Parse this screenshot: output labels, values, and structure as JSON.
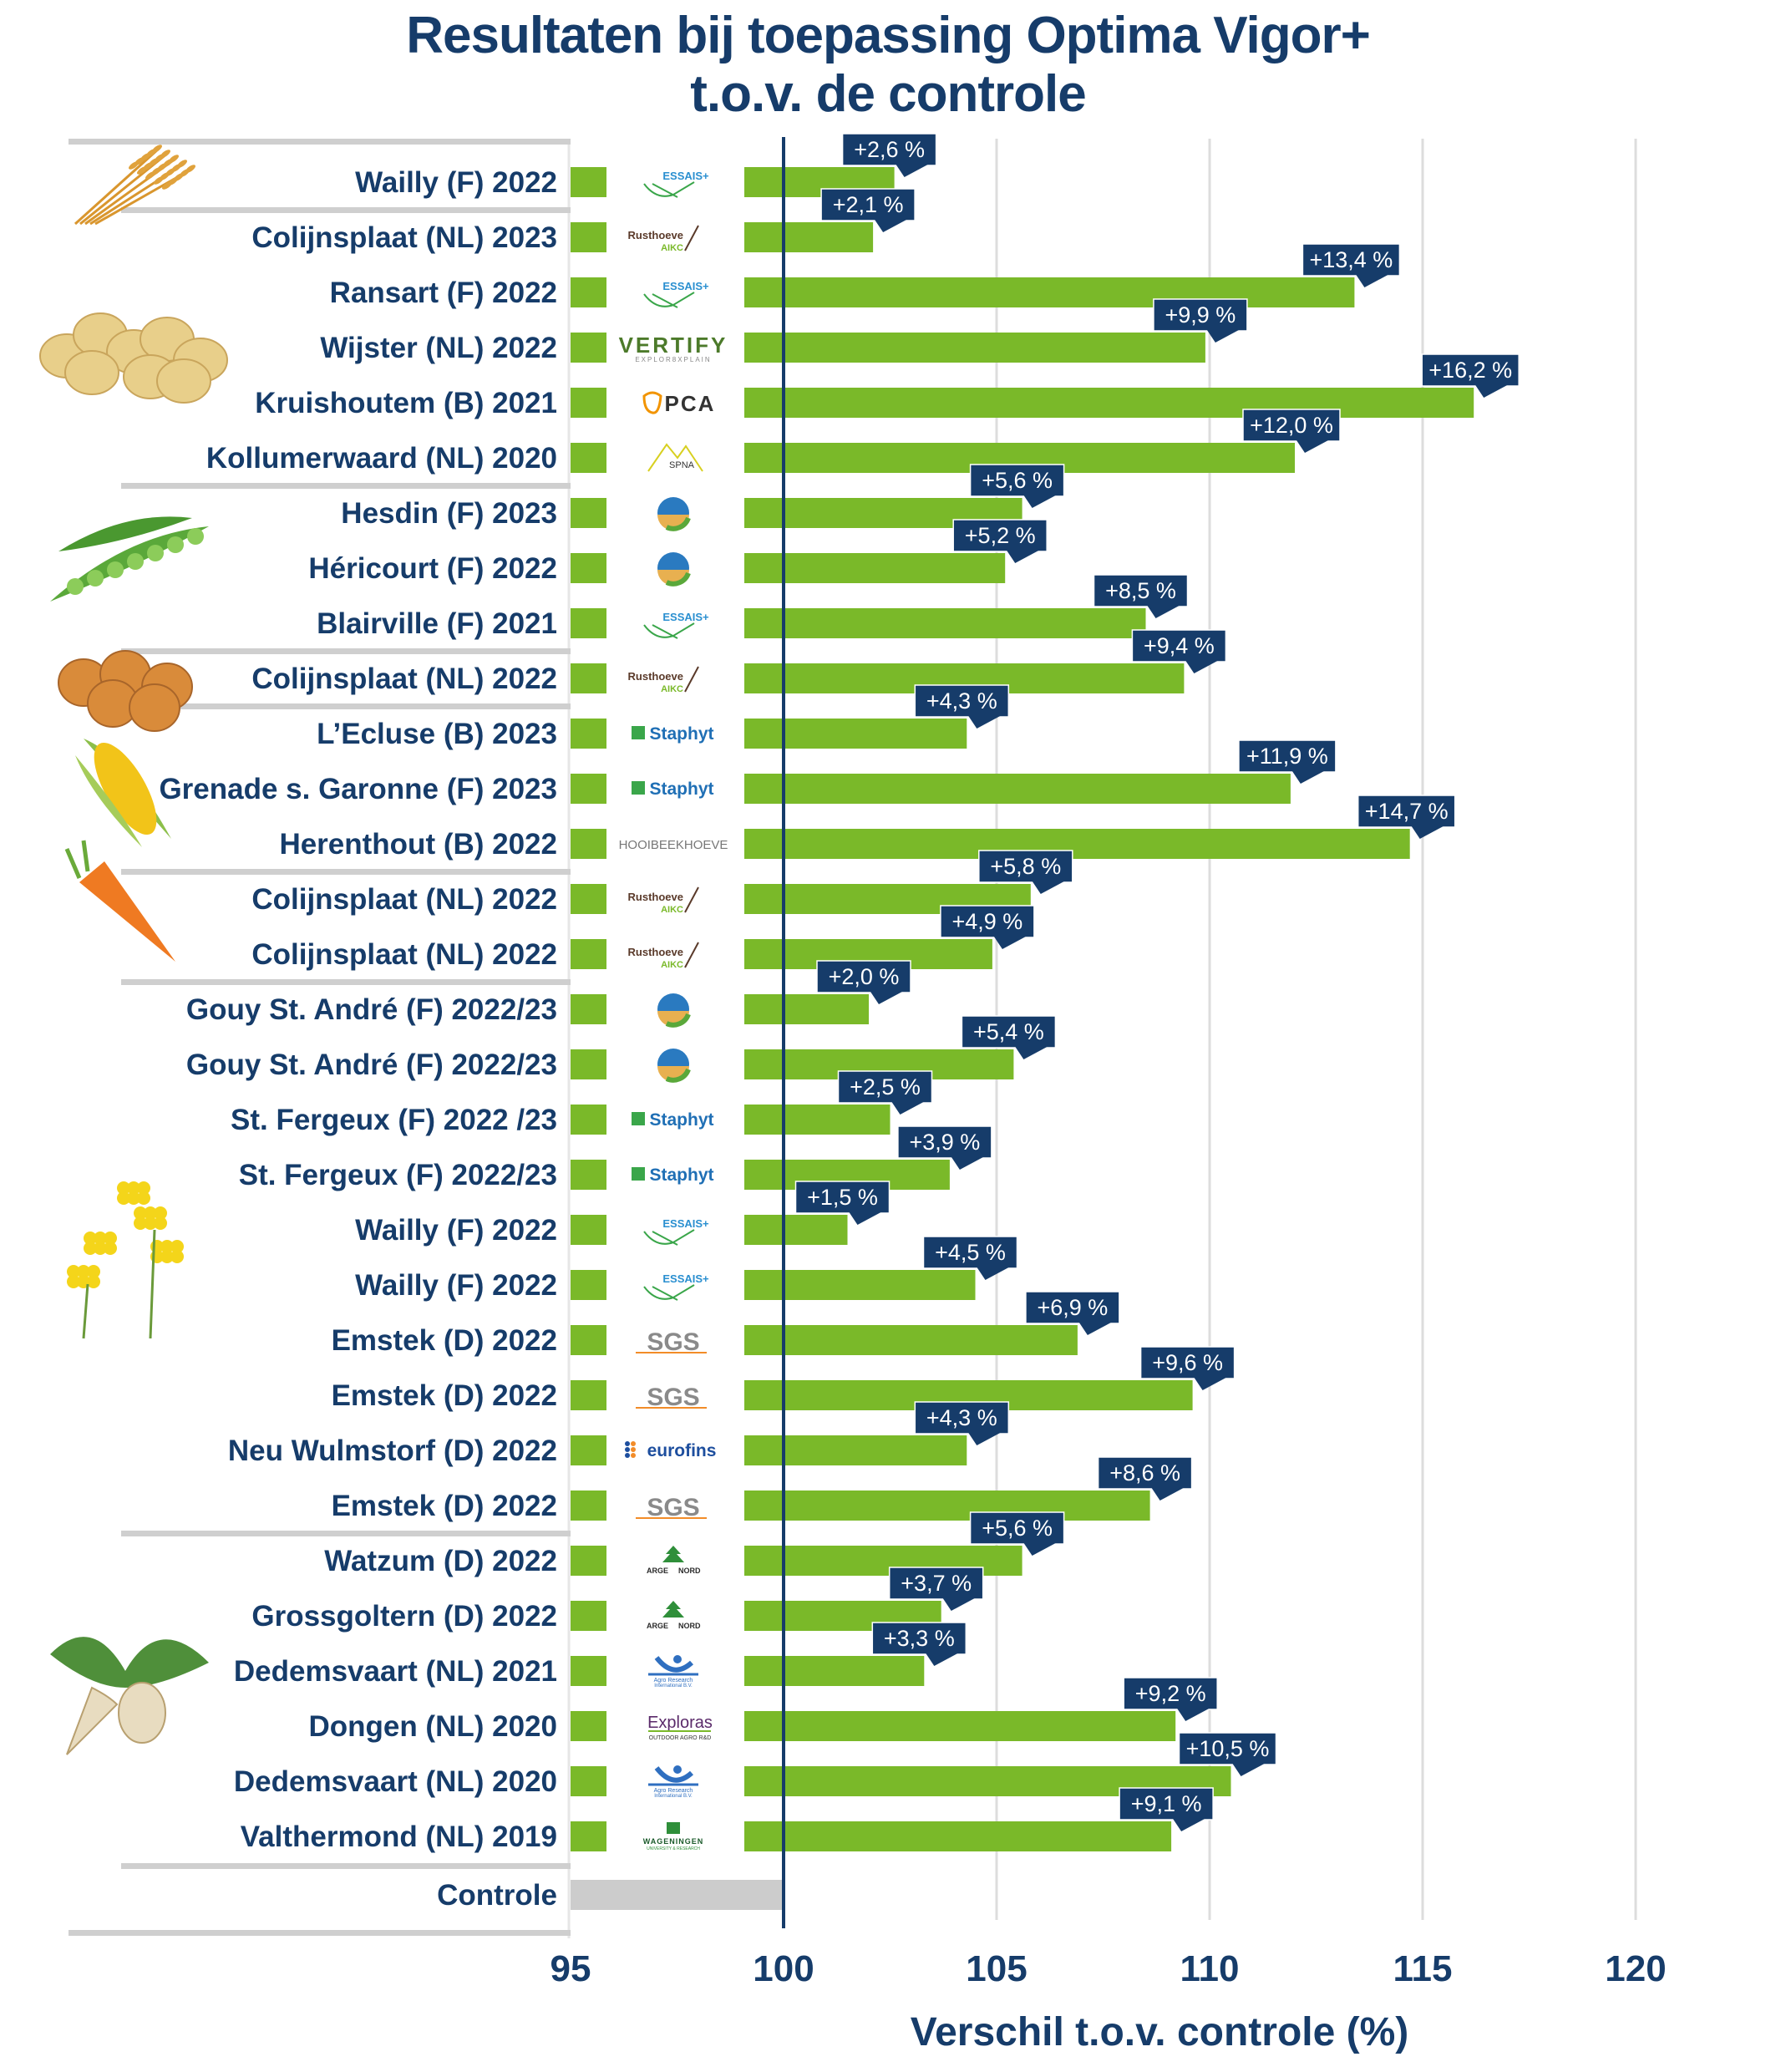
{
  "title_lines": [
    "Resultaten bij toepassing Optima Vigor+",
    "t.o.v. de controle"
  ],
  "chart_data": {
    "type": "bar",
    "orientation": "horizontal",
    "title": "Resultaten bij toepassing Optima Vigor+ t.o.v. de controle",
    "xlabel": "Verschil t.o.v. controle (%)",
    "ylabel": "",
    "xlim": [
      95,
      120
    ],
    "xticks": [
      95,
      100,
      105,
      110,
      115,
      120
    ],
    "reference_line": 100,
    "grid": "vertical",
    "colors": {
      "bar": "#7ab929",
      "control_bar": "#cccccc",
      "label_box": "#163c6a",
      "text": "#163c6a",
      "grid": "#dddddd"
    },
    "groups": [
      {
        "crop": "cereal",
        "icon": "wheat-icon",
        "rows": [
          0
        ]
      },
      {
        "crop": "potato",
        "icon": "potato-icon",
        "rows": [
          1,
          2,
          3,
          4,
          5
        ]
      },
      {
        "crop": "pea",
        "icon": "pea-icon",
        "rows": [
          6,
          7,
          8
        ]
      },
      {
        "crop": "onion",
        "icon": "onion-icon",
        "rows": [
          9
        ]
      },
      {
        "crop": "maize",
        "icon": "corn-icon",
        "rows": [
          10,
          11,
          12
        ]
      },
      {
        "crop": "carrot",
        "icon": "carrot-icon",
        "rows": [
          13,
          14
        ]
      },
      {
        "crop": "rapeseed",
        "icon": "rapeseed-icon",
        "rows": [
          15,
          16,
          17,
          18,
          19,
          20,
          21,
          22,
          23,
          24
        ]
      },
      {
        "crop": "sugar-beet",
        "icon": "sugar-beet-icon",
        "rows": [
          25,
          26,
          27,
          28,
          29,
          30
        ]
      }
    ],
    "rows": [
      {
        "label": "Wailly (F) 2022",
        "value": 102.6,
        "display": "+2,6 %",
        "partner": "ESSAIS+"
      },
      {
        "label": "Colijnsplaat (NL) 2023",
        "value": 102.1,
        "display": "+2,1 %",
        "partner": "Rusthoeve AIKC"
      },
      {
        "label": "Ransart (F) 2022",
        "value": 113.4,
        "display": "+13,4 %",
        "partner": "ESSAIS+"
      },
      {
        "label": "Wijster (NL) 2022",
        "value": 109.9,
        "display": "+9,9 %",
        "partner": "VERTIFY"
      },
      {
        "label": "Kruishoutem (B) 2021",
        "value": 116.2,
        "display": "+16,2 %",
        "partner": "PCA"
      },
      {
        "label": "Kollumerwaard (NL) 2020",
        "value": 112.0,
        "display": "+12,0 %",
        "partner": "SPNA"
      },
      {
        "label": "Hesdin (F) 2023",
        "value": 105.6,
        "display": "+5,6 %",
        "partner": "Greenotec"
      },
      {
        "label": "Héricourt (F) 2022",
        "value": 105.2,
        "display": "+5,2 %",
        "partner": "Greenotec"
      },
      {
        "label": "Blairville (F) 2021",
        "value": 108.5,
        "display": "+8,5 %",
        "partner": "ESSAIS+"
      },
      {
        "label": "Colijnsplaat (NL) 2022",
        "value": 109.4,
        "display": "+9,4 %",
        "partner": "Rusthoeve AIKC"
      },
      {
        "label": "L’Ecluse (B) 2023",
        "value": 104.3,
        "display": "+4,3 %",
        "partner": "Staphyt"
      },
      {
        "label": "Grenade s. Garonne (F) 2023",
        "value": 111.9,
        "display": "+11,9 %",
        "partner": "Staphyt"
      },
      {
        "label": "Herenthout (B) 2022",
        "value": 114.7,
        "display": "+14,7 %",
        "partner": "HOOIBEEKHOEVE"
      },
      {
        "label": "Colijnsplaat (NL) 2022",
        "value": 105.8,
        "display": "+5,8 %",
        "partner": "Rusthoeve AIKC"
      },
      {
        "label": "Colijnsplaat (NL) 2022",
        "value": 104.9,
        "display": "+4,9 %",
        "partner": "Rusthoeve AIKC"
      },
      {
        "label": "Gouy St. André (F) 2022/23",
        "value": 102.0,
        "display": "+2,0 %",
        "partner": "Greenotec"
      },
      {
        "label": "Gouy St. André (F) 2022/23",
        "value": 105.4,
        "display": "+5,4 %",
        "partner": "Greenotec"
      },
      {
        "label": "St. Fergeux (F) 2022 /23",
        "value": 102.5,
        "display": "+2,5 %",
        "partner": "Staphyt"
      },
      {
        "label": "St. Fergeux (F) 2022/23",
        "value": 103.9,
        "display": "+3,9 %",
        "partner": "Staphyt"
      },
      {
        "label": "Wailly (F) 2022",
        "value": 101.5,
        "display": "+1,5 %",
        "partner": "ESSAIS+"
      },
      {
        "label": "Wailly (F) 2022",
        "value": 104.5,
        "display": "+4,5 %",
        "partner": "ESSAIS+"
      },
      {
        "label": "Emstek (D) 2022",
        "value": 106.9,
        "display": "+6,9 %",
        "partner": "SGS"
      },
      {
        "label": "Emstek (D) 2022",
        "value": 109.6,
        "display": "+9,6 %",
        "partner": "SGS"
      },
      {
        "label": "Neu Wulmstorf (D) 2022",
        "value": 104.3,
        "display": "+4,3 %",
        "partner": "eurofins"
      },
      {
        "label": "Emstek (D) 2022",
        "value": 108.6,
        "display": "+8,6 %",
        "partner": "SGS"
      },
      {
        "label": "Watzum (D) 2022",
        "value": 105.6,
        "display": "+5,6 %",
        "partner": "ARGE NORD"
      },
      {
        "label": "Grossgoltern (D) 2022",
        "value": 103.7,
        "display": "+3,7 %",
        "partner": "ARGE NORD"
      },
      {
        "label": "Dedemsvaart (NL) 2021",
        "value": 103.3,
        "display": "+3,3 %",
        "partner": "Agro Research International B.V."
      },
      {
        "label": "Dongen (NL) 2020",
        "value": 109.2,
        "display": "+9,2 %",
        "partner": "Exploras"
      },
      {
        "label": "Dedemsvaart (NL) 2020",
        "value": 110.5,
        "display": "+10,5 %",
        "partner": "Agro Research International B.V."
      },
      {
        "label": "Valthermond (NL) 2019",
        "value": 109.1,
        "display": "+9,1 %",
        "partner": "WAGENINGEN"
      }
    ],
    "control": {
      "label": "Controle",
      "value": 100
    }
  },
  "logos": {
    "ESSAIS+": {
      "lines": [
        "ESSAIS+"
      ],
      "color": "#2a8fd0",
      "accent": "#3aa64a"
    },
    "Rusthoeve AIKC": {
      "lines": [
        "Rusthoeve",
        "AIKC"
      ],
      "color": "#5a3a2a",
      "accent": "#7ab929"
    },
    "VERTIFY": {
      "lines": [
        "VERTIFY",
        "EXPLOR8XPLAIN"
      ],
      "color": "#4c7a2a",
      "accent": "#888888"
    },
    "PCA": {
      "lines": [
        "PCA"
      ],
      "color": "#333333",
      "accent": "#f29400"
    },
    "SPNA": {
      "lines": [
        "SPNA"
      ],
      "color": "#333333",
      "accent": "#d8d020"
    },
    "Greenotec": {
      "lines": [
        ""
      ],
      "color": "#2a7ac0",
      "accent": "#e8b050"
    },
    "Staphyt": {
      "lines": [
        "Staphyt"
      ],
      "color": "#1f6fb5",
      "accent": "#3aa64a"
    },
    "HOOIBEEKHOEVE": {
      "lines": [
        "HOOIBEEKHOEVE"
      ],
      "color": "#777777",
      "accent": "#777777"
    },
    "SGS": {
      "lines": [
        "SGS"
      ],
      "color": "#8a8a8a",
      "accent": "#f28c28"
    },
    "eurofins": {
      "lines": [
        "eurofins"
      ],
      "color": "#1d4e9e",
      "accent": "#f28c28"
    },
    "ARGE NORD": {
      "lines": [
        "ARGE",
        "NORD"
      ],
      "color": "#2a2a2a",
      "accent": "#2f8f3a"
    },
    "Agro Research International B.V.": {
      "lines": [
        "Agro Research",
        "International B.V."
      ],
      "color": "#2f6fc0",
      "accent": "#2f6fc0"
    },
    "Exploras": {
      "lines": [
        "Exploras",
        "OUTDOOR AGRO R&D"
      ],
      "color": "#5a2a6a",
      "accent": "#7ab929"
    },
    "WAGENINGEN": {
      "lines": [
        "WAGENINGEN",
        "UNIVERSITY & RESEARCH"
      ],
      "color": "#1a5a2a",
      "accent": "#2f8f3a"
    }
  }
}
